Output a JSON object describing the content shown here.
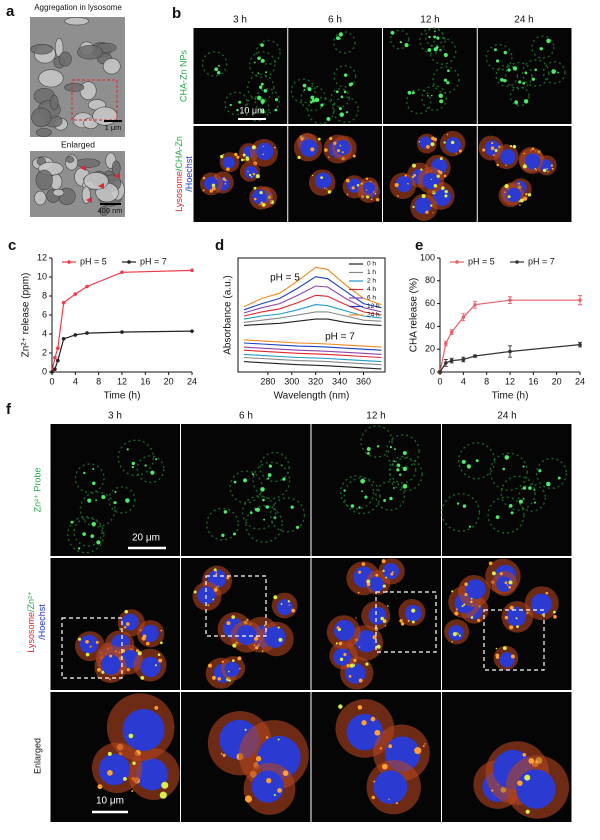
{
  "panels": {
    "a": {
      "label": "a",
      "title": "Aggregation in lysosome",
      "enlarged": "Enlarged",
      "scale_top": "1 μm",
      "scale_bottom": "400 nm"
    },
    "b": {
      "label": "b",
      "columns": [
        "3 h",
        "6 h",
        "12 h",
        "24 h"
      ],
      "row1": "CHA-Zn NPs",
      "row2": [
        "Lysosome",
        "/CHA-Zn",
        "/Hoechst"
      ],
      "scale": "10 μm"
    },
    "f": {
      "label": "f",
      "columns": [
        "3 h",
        "6 h",
        "12 h",
        "24 h"
      ],
      "row1": "Zn²⁺ Probe",
      "row2": [
        "Lysosome",
        "/Zn²⁺",
        "/Hoechst"
      ],
      "row3": "Enlarged",
      "scale_top": "20 μm",
      "scale_bottom": "10 μm"
    }
  },
  "chart_data": [
    {
      "type": "line",
      "panel": "c",
      "xlabel": "Time (h)",
      "ylabel": "Zn²⁺ release (ppm)",
      "x": [
        0,
        0.5,
        1,
        2,
        4,
        6,
        12,
        24
      ],
      "xlim": [
        0,
        24
      ],
      "xticks": [
        0,
        4,
        8,
        12,
        16,
        20,
        24
      ],
      "ylim": [
        0,
        12
      ],
      "yticks": [
        0,
        2,
        4,
        6,
        8,
        10,
        12
      ],
      "frame": "open",
      "markers": true,
      "legend": "top",
      "series": [
        {
          "name": "pH = 5",
          "color": "#ee3b4a",
          "values": [
            0,
            1.5,
            2.5,
            7.3,
            8.2,
            9,
            10.5,
            10.7
          ]
        },
        {
          "name": "pH = 7",
          "color": "#222222",
          "values": [
            0,
            0.3,
            1.2,
            3.5,
            3.9,
            4.1,
            4.2,
            4.3
          ]
        }
      ]
    },
    {
      "type": "line",
      "panel": "d",
      "xlabel": "Wavelength (nm)",
      "ylabel": "Absorbance (a.u.)",
      "x": [
        260,
        275,
        290,
        305,
        320,
        330,
        345,
        360,
        375
      ],
      "xlim": [
        255,
        378
      ],
      "xticks": [
        280,
        300,
        320,
        340,
        360
      ],
      "ylim": [
        0,
        1.1
      ],
      "frame": "box",
      "markers": false,
      "legend": "top-right",
      "annotations": [
        "pH = 5",
        "pH = 7"
      ],
      "series": [
        {
          "name": "0 h",
          "color": "#222222",
          "values": [
            0.45,
            0.46,
            0.47,
            0.49,
            0.51,
            0.51,
            0.48,
            0.46,
            0.45
          ]
        },
        {
          "name": "1 h",
          "color": "#888888",
          "values": [
            0.48,
            0.5,
            0.52,
            0.55,
            0.58,
            0.58,
            0.54,
            0.5,
            0.49
          ]
        },
        {
          "name": "2 h",
          "color": "#1f9ac9",
          "values": [
            0.51,
            0.54,
            0.56,
            0.6,
            0.65,
            0.64,
            0.59,
            0.54,
            0.52
          ]
        },
        {
          "name": "4 h",
          "color": "#e0262f",
          "values": [
            0.54,
            0.58,
            0.61,
            0.67,
            0.74,
            0.73,
            0.65,
            0.58,
            0.55
          ]
        },
        {
          "name": "6 h",
          "color": "#8e44ad",
          "values": [
            0.57,
            0.62,
            0.66,
            0.74,
            0.83,
            0.82,
            0.71,
            0.62,
            0.58
          ]
        },
        {
          "name": "12 h",
          "color": "#1f3fbf",
          "values": [
            0.6,
            0.66,
            0.71,
            0.81,
            0.92,
            0.9,
            0.78,
            0.66,
            0.62
          ]
        },
        {
          "name": "24 h",
          "color": "#f08a1c",
          "values": [
            0.63,
            0.71,
            0.76,
            0.88,
            1.01,
            0.99,
            0.84,
            0.71,
            0.65
          ]
        }
      ],
      "series_ph7": [
        {
          "color": "#222222",
          "values": [
            0.1,
            0.09,
            0.08,
            0.07,
            0.065,
            0.06,
            0.05,
            0.04,
            0.03
          ]
        },
        {
          "color": "#888888",
          "values": [
            0.14,
            0.13,
            0.12,
            0.11,
            0.105,
            0.1,
            0.09,
            0.08,
            0.07
          ]
        },
        {
          "color": "#1f9ac9",
          "values": [
            0.17,
            0.16,
            0.15,
            0.14,
            0.135,
            0.13,
            0.12,
            0.11,
            0.1
          ]
        },
        {
          "color": "#e0262f",
          "values": [
            0.21,
            0.2,
            0.19,
            0.18,
            0.175,
            0.17,
            0.16,
            0.15,
            0.14
          ]
        },
        {
          "color": "#8e44ad",
          "values": [
            0.24,
            0.23,
            0.22,
            0.21,
            0.205,
            0.2,
            0.19,
            0.18,
            0.17
          ]
        },
        {
          "color": "#1f3fbf",
          "values": [
            0.28,
            0.27,
            0.26,
            0.25,
            0.245,
            0.24,
            0.23,
            0.22,
            0.21
          ]
        },
        {
          "color": "#f08a1c",
          "values": [
            0.31,
            0.3,
            0.29,
            0.28,
            0.275,
            0.27,
            0.26,
            0.25,
            0.24
          ]
        }
      ]
    },
    {
      "type": "line",
      "panel": "e",
      "xlabel": "Time (h)",
      "ylabel": "CHA release (%)",
      "x": [
        0,
        1,
        2,
        4,
        6,
        12,
        24
      ],
      "xlim": [
        0,
        24
      ],
      "xticks": [
        0,
        4,
        8,
        12,
        16,
        20,
        24
      ],
      "ylim": [
        0,
        100
      ],
      "yticks": [
        0,
        20,
        40,
        60,
        80,
        100
      ],
      "frame": "open",
      "markers": true,
      "legend": "top",
      "series": [
        {
          "name": "pH = 5",
          "color": "#e8616a",
          "values": [
            0,
            25,
            35,
            48,
            59,
            63,
            63
          ],
          "errors": [
            1,
            2,
            2,
            3,
            3,
            3,
            4
          ]
        },
        {
          "name": "pH = 7",
          "color": "#333333",
          "values": [
            0,
            8,
            10,
            11,
            14,
            18,
            24
          ],
          "errors": [
            1,
            3,
            2,
            2,
            1,
            5,
            2
          ]
        }
      ]
    }
  ]
}
